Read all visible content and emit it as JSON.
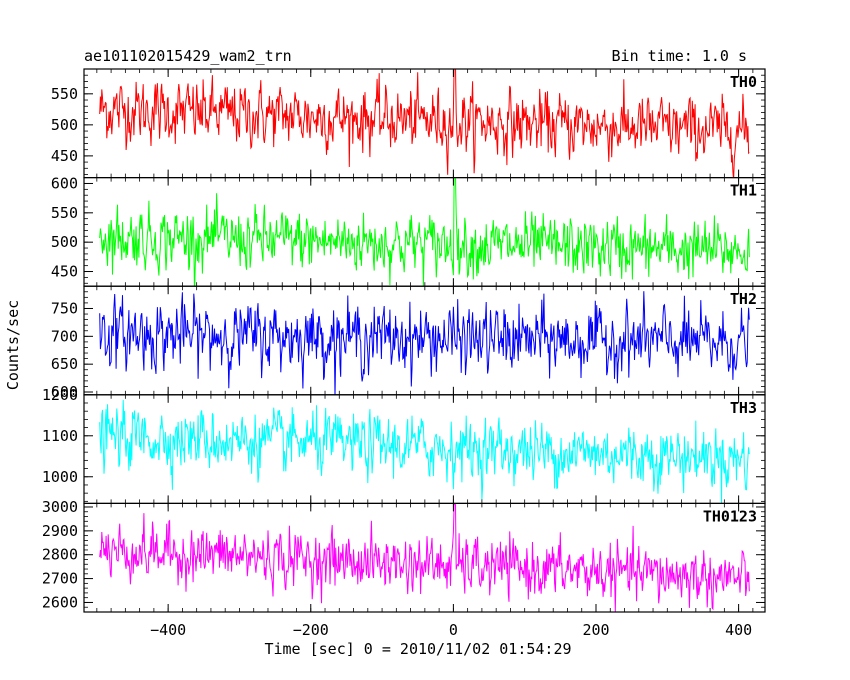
{
  "header": {
    "title": "ae101102015429_wam2_trn",
    "bin_time": "Bin time: 1.0 s"
  },
  "chart_data": {
    "type": "line",
    "title": "ae101102015429_wam2_trn",
    "xlabel": "Time [sec] 0 = 2010/11/02 01:54:29",
    "ylabel": "Counts/sec",
    "xlim": [
      -518,
      437
    ],
    "x_ticks": [
      -400,
      -200,
      0,
      200,
      400
    ],
    "x_range": [
      -496,
      415
    ],
    "bin_time_s": 1.0,
    "grid": false,
    "panels": [
      {
        "name": "TH0",
        "color": "#ff0000",
        "ylim": [
          415,
          590
        ],
        "y_ticks": [
          450,
          500,
          550
        ],
        "level_start": 525,
        "level_end": 490,
        "noise_sd": 24,
        "spike_x": 2,
        "spike_value": 595
      },
      {
        "name": "TH1",
        "color": "#00ff00",
        "ylim": [
          425,
          610
        ],
        "y_ticks": [
          450,
          500,
          550,
          600
        ],
        "level_start": 510,
        "level_end": 485,
        "noise_sd": 24,
        "spike_x": 2,
        "spike_value": 610
      },
      {
        "name": "TH2",
        "color": "#0000ff",
        "ylim": [
          595,
          790
        ],
        "y_ticks": [
          600,
          650,
          700,
          750
        ],
        "level_start": 705,
        "level_end": 688,
        "noise_sd": 28,
        "spike_x": null,
        "spike_value": null
      },
      {
        "name": "TH3",
        "color": "#00ffff",
        "ylim": [
          935,
          1200
        ],
        "y_ticks": [
          1000,
          1100,
          1200
        ],
        "level_start": 1100,
        "level_end": 1045,
        "noise_sd": 35,
        "spike_x": null,
        "spike_value": null
      },
      {
        "name": "TH0123",
        "color": "#ff00ff",
        "ylim": [
          2560,
          3015
        ],
        "y_ticks": [
          2600,
          2700,
          2800,
          2900,
          3000
        ],
        "level_start": 2820,
        "level_end": 2700,
        "noise_sd": 55,
        "spike_x": 2,
        "spike_value": 3010
      }
    ]
  }
}
